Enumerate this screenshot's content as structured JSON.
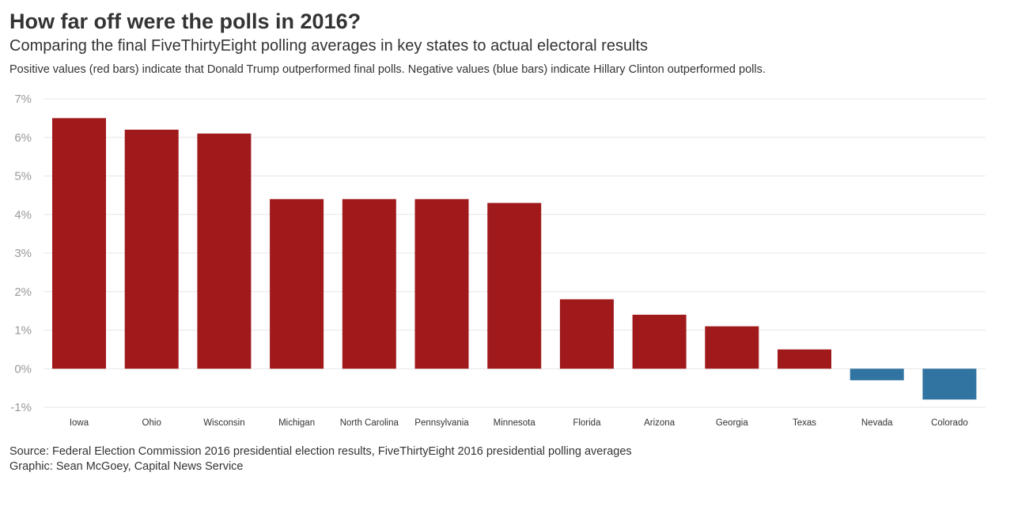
{
  "title": "How far off were the polls in 2016?",
  "subtitle": "Comparing the final FiveThirtyEight polling averages in key states to actual electoral results",
  "description": "Positive values (red bars) indicate that Donald Trump outperformed final polls. Negative values (blue bars) indicate Hillary Clinton outperformed polls.",
  "footer": {
    "source": "Source: Federal Election Commission 2016 presidential election results, FiveThirtyEight 2016 presidential polling averages",
    "credit": "Graphic: Sean McGoey, Capital News Service"
  },
  "colors": {
    "positive": "#a0191b",
    "negative": "#3274a1",
    "grid": "#e6e6e6",
    "tick_text": "#999999",
    "category_text": "#333333"
  },
  "chart_data": {
    "type": "bar",
    "categories": [
      "Iowa",
      "Ohio",
      "Wisconsin",
      "Michigan",
      "North Carolina",
      "Pennsylvania",
      "Minnesota",
      "Florida",
      "Arizona",
      "Georgia",
      "Texas",
      "Nevada",
      "Colorado"
    ],
    "values": [
      6.5,
      6.2,
      6.1,
      4.4,
      4.4,
      4.4,
      4.3,
      1.8,
      1.4,
      1.1,
      0.5,
      -0.3,
      -0.8
    ],
    "ylim": [
      -1,
      7
    ],
    "yticks": [
      7,
      6,
      5,
      4,
      3,
      2,
      1,
      0,
      -1
    ],
    "ytick_labels": [
      "7%",
      "6%",
      "5%",
      "4%",
      "3%",
      "2%",
      "1%",
      "0%",
      "-1%"
    ],
    "grid": true,
    "legend": false
  }
}
